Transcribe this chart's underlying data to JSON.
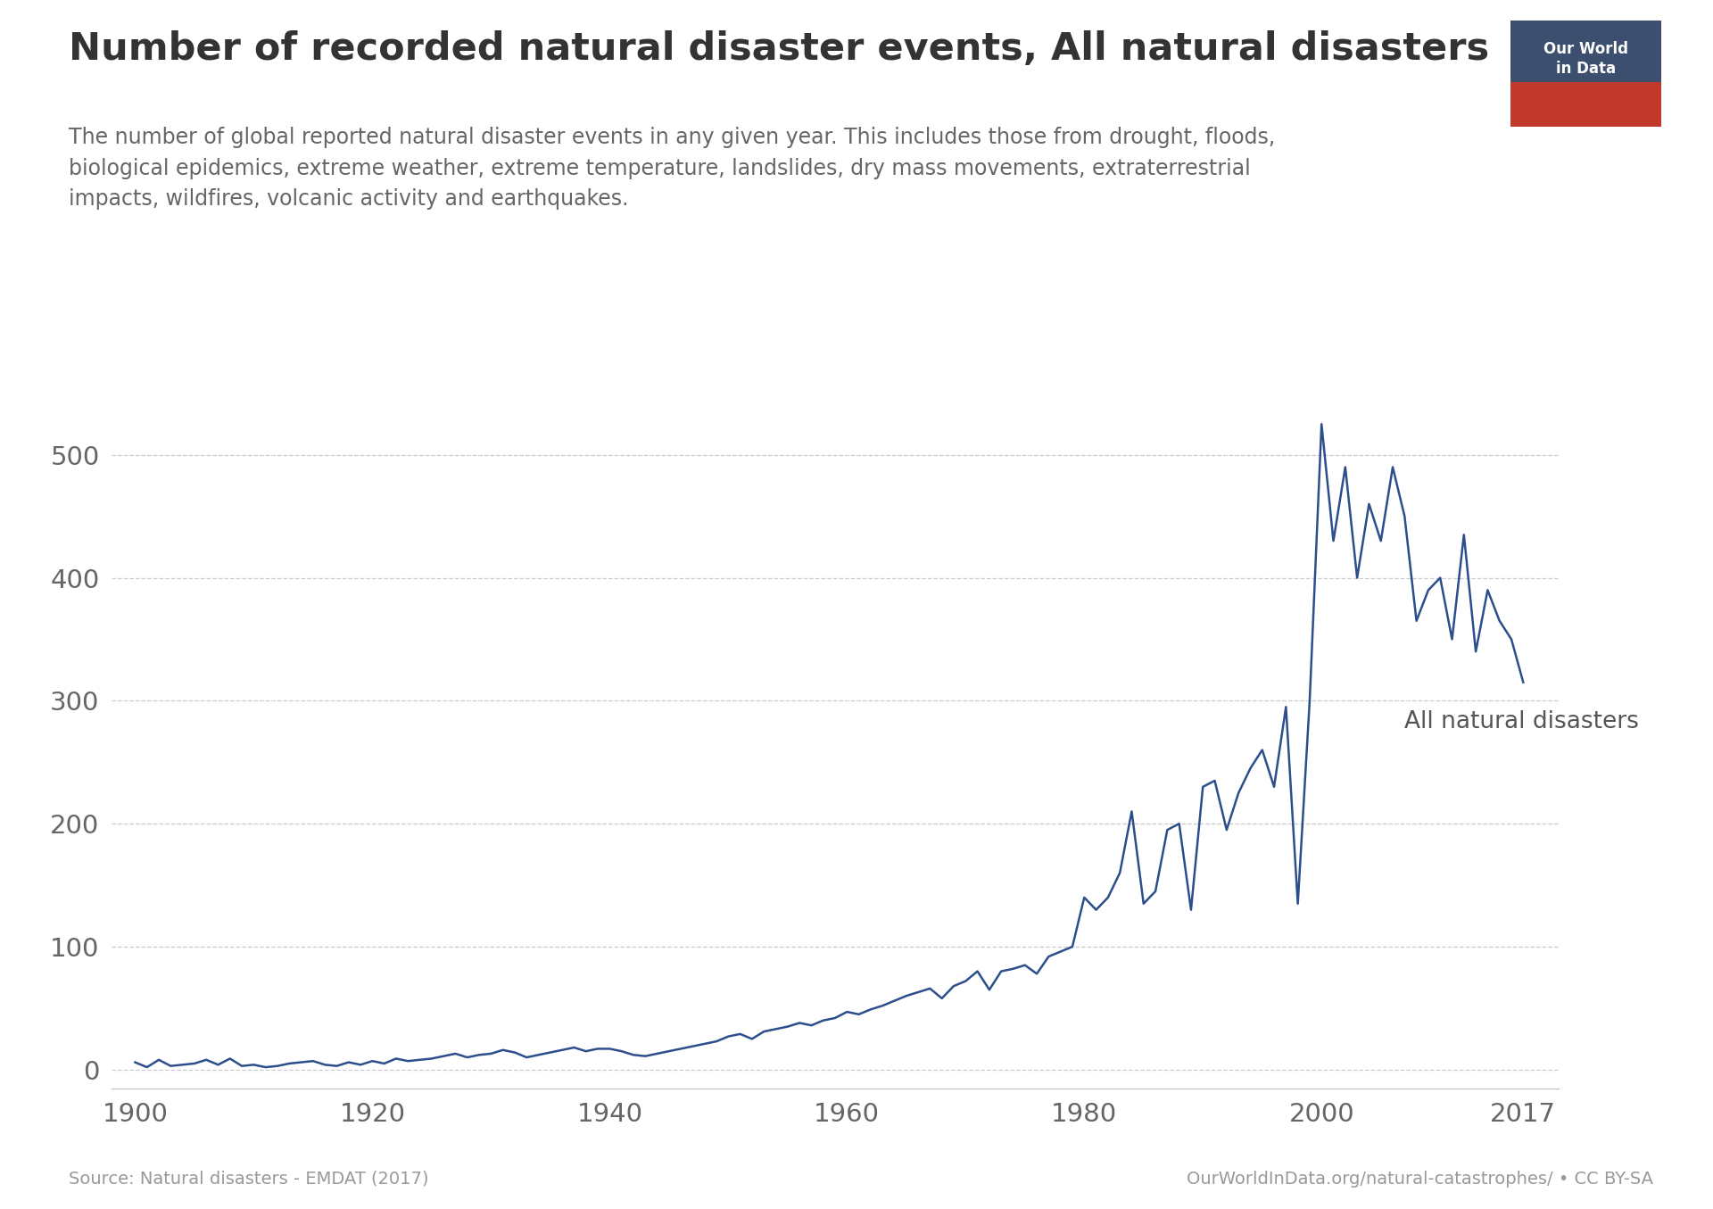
{
  "title": "Number of recorded natural disaster events, All natural disasters",
  "subtitle": "The number of global reported natural disaster events in any given year. This includes those from drought, floods,\nbiological epidemics, extreme weather, extreme temperature, landslides, dry mass movements, extraterrestrial\nimpacts, wildfires, volcanic activity and earthquakes.",
  "source_left": "Source: Natural disasters - EMDAT (2017)",
  "source_right": "OurWorldInData.org/natural-catastrophes/ • CC BY-SA",
  "line_label": "All natural disasters",
  "line_color": "#2c4f8c",
  "background_color": "#ffffff",
  "yticks": [
    0,
    100,
    200,
    300,
    400,
    500
  ],
  "xticks": [
    1900,
    1920,
    1940,
    1960,
    1980,
    2000,
    2017
  ],
  "ylim": [
    -15,
    570
  ],
  "xlim": [
    1898,
    2020
  ],
  "years": [
    1900,
    1901,
    1902,
    1903,
    1904,
    1905,
    1906,
    1907,
    1908,
    1909,
    1910,
    1911,
    1912,
    1913,
    1914,
    1915,
    1916,
    1917,
    1918,
    1919,
    1920,
    1921,
    1922,
    1923,
    1924,
    1925,
    1926,
    1927,
    1928,
    1929,
    1930,
    1931,
    1932,
    1933,
    1934,
    1935,
    1936,
    1937,
    1938,
    1939,
    1940,
    1941,
    1942,
    1943,
    1944,
    1945,
    1946,
    1947,
    1948,
    1949,
    1950,
    1951,
    1952,
    1953,
    1954,
    1955,
    1956,
    1957,
    1958,
    1959,
    1960,
    1961,
    1962,
    1963,
    1964,
    1965,
    1966,
    1967,
    1968,
    1969,
    1970,
    1971,
    1972,
    1973,
    1974,
    1975,
    1976,
    1977,
    1978,
    1979,
    1980,
    1981,
    1982,
    1983,
    1984,
    1985,
    1986,
    1987,
    1988,
    1989,
    1990,
    1991,
    1992,
    1993,
    1994,
    1995,
    1996,
    1997,
    1998,
    1999,
    2000,
    2001,
    2002,
    2003,
    2004,
    2005,
    2006,
    2007,
    2008,
    2009,
    2010,
    2011,
    2012,
    2013,
    2014,
    2015,
    2016,
    2017
  ],
  "values": [
    6,
    2,
    8,
    3,
    4,
    5,
    8,
    4,
    9,
    3,
    4,
    2,
    3,
    5,
    6,
    7,
    4,
    3,
    6,
    4,
    7,
    5,
    9,
    7,
    8,
    9,
    11,
    13,
    10,
    12,
    13,
    16,
    14,
    10,
    12,
    14,
    16,
    18,
    15,
    17,
    17,
    15,
    12,
    11,
    13,
    15,
    17,
    19,
    21,
    23,
    27,
    29,
    25,
    31,
    33,
    35,
    38,
    36,
    40,
    42,
    47,
    45,
    49,
    52,
    56,
    60,
    63,
    66,
    58,
    68,
    72,
    80,
    65,
    80,
    82,
    85,
    78,
    92,
    96,
    100,
    140,
    130,
    140,
    160,
    210,
    135,
    145,
    195,
    200,
    130,
    230,
    235,
    195,
    225,
    245,
    260,
    230,
    295,
    135,
    300,
    525,
    430,
    490,
    400,
    460,
    430,
    490,
    450,
    365,
    390,
    400,
    350,
    435,
    340,
    390,
    365,
    350,
    315
  ]
}
